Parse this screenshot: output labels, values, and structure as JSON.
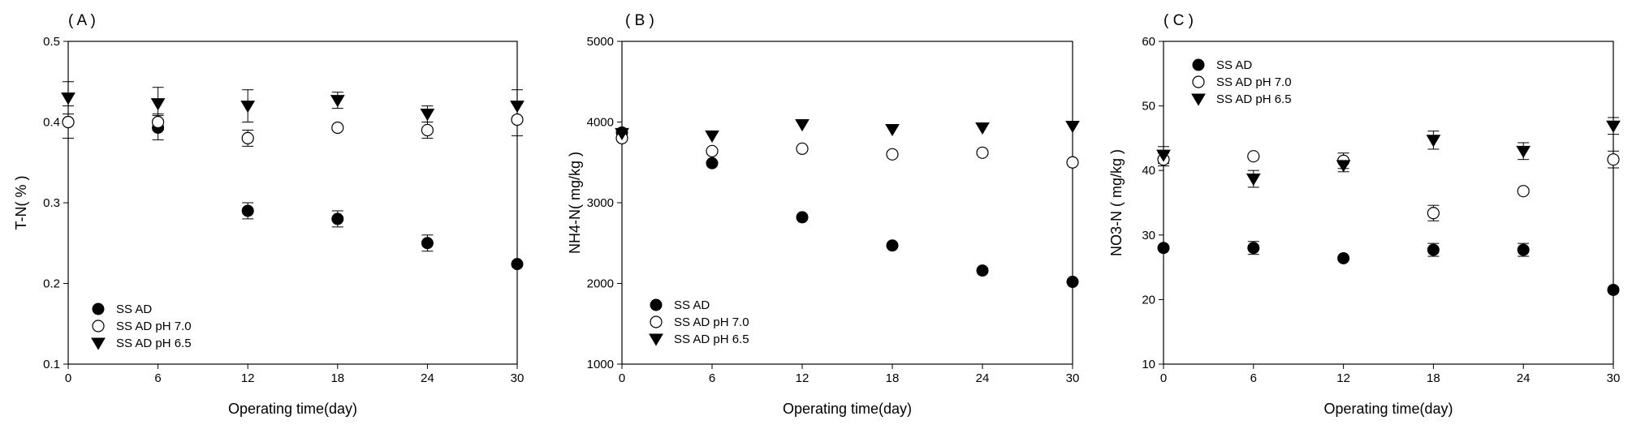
{
  "chart_data": [
    {
      "type": "scatter",
      "panel_label": "( A )",
      "xlabel": "Operating time(day)",
      "ylabel": "T-N( % )",
      "xlim": [
        0,
        30
      ],
      "ylim": [
        0.1,
        0.5
      ],
      "xticks": [
        "0",
        "6",
        "12",
        "18",
        "24",
        "30"
      ],
      "yticks": [
        "0.1",
        "0.2",
        "0.3",
        "0.4",
        "0.5"
      ],
      "legend_position": "bottom-left",
      "error_bars": true,
      "x": [
        0,
        6,
        12,
        18,
        24,
        30
      ],
      "series": [
        {
          "name": "SS AD",
          "marker": "filled-circle",
          "values": [
            0.4,
            0.393,
            0.29,
            0.28,
            0.25,
            0.224
          ],
          "errors": [
            0,
            0.015,
            0.01,
            0.01,
            0.01,
            0
          ]
        },
        {
          "name": "SS AD pH 7.0",
          "marker": "open-circle",
          "values": [
            0.4,
            0.4,
            0.38,
            0.393,
            0.39,
            0.403
          ],
          "errors": [
            0.02,
            0.01,
            0.01,
            0,
            0.01,
            0.02
          ]
        },
        {
          "name": "SS AD pH 6.5",
          "marker": "filled-triangle",
          "values": [
            0.43,
            0.423,
            0.42,
            0.427,
            0.41,
            0.42
          ],
          "errors": [
            0.02,
            0.02,
            0.02,
            0.01,
            0.01,
            0.02
          ]
        }
      ]
    },
    {
      "type": "scatter",
      "panel_label": "( B )",
      "xlabel": "Operating time(day)",
      "ylabel": "NH4-N( mg/kg )",
      "xlim": [
        0,
        30
      ],
      "ylim": [
        1000,
        5000
      ],
      "xticks": [
        "0",
        "6",
        "12",
        "18",
        "24",
        "30"
      ],
      "yticks": [
        "1000",
        "2000",
        "3000",
        "4000",
        "5000"
      ],
      "legend_position": "bottom-left",
      "error_bars": false,
      "x": [
        0,
        6,
        12,
        18,
        24,
        30
      ],
      "series": [
        {
          "name": "SS AD",
          "marker": "filled-circle",
          "values": [
            3870,
            3490,
            2820,
            2470,
            2160,
            2020
          ],
          "errors": [
            0,
            0,
            0,
            0,
            0,
            0
          ]
        },
        {
          "name": "SS AD pH 7.0",
          "marker": "open-circle",
          "values": [
            3800,
            3640,
            3670,
            3600,
            3620,
            3500
          ],
          "errors": [
            0,
            0,
            0,
            0,
            0,
            0
          ]
        },
        {
          "name": "SS AD pH 6.5",
          "marker": "filled-triangle",
          "values": [
            3860,
            3830,
            3970,
            3910,
            3930,
            3950
          ],
          "errors": [
            0,
            0,
            0,
            0,
            0,
            0
          ]
        }
      ]
    },
    {
      "type": "scatter",
      "panel_label": "( C )",
      "xlabel": "Operating time(day)",
      "ylabel": "NO3-N ( mg/kg )",
      "xlim": [
        0,
        30
      ],
      "ylim": [
        10,
        60
      ],
      "xticks": [
        "0",
        "6",
        "12",
        "18",
        "24",
        "30"
      ],
      "yticks": [
        "10",
        "20",
        "30",
        "40",
        "50",
        "60"
      ],
      "legend_position": "top-left",
      "error_bars": true,
      "x": [
        0,
        6,
        12,
        18,
        24,
        30
      ],
      "series": [
        {
          "name": "SS AD",
          "marker": "filled-circle",
          "values": [
            28.0,
            28.0,
            26.4,
            27.7,
            27.7,
            21.5
          ],
          "errors": [
            0,
            1.0,
            0,
            1.0,
            1.0,
            0
          ]
        },
        {
          "name": "SS AD pH 7.0",
          "marker": "open-circle",
          "values": [
            41.7,
            42.2,
            41.5,
            33.4,
            36.8,
            41.7
          ],
          "errors": [
            1.0,
            0,
            1.2,
            1.2,
            0,
            1.3
          ]
        },
        {
          "name": "SS AD pH 6.5",
          "marker": "filled-triangle",
          "values": [
            42.4,
            38.7,
            40.8,
            44.7,
            43.0,
            46.9
          ],
          "errors": [
            1.3,
            1.3,
            1.0,
            1.4,
            1.3,
            1.3
          ]
        }
      ]
    }
  ]
}
